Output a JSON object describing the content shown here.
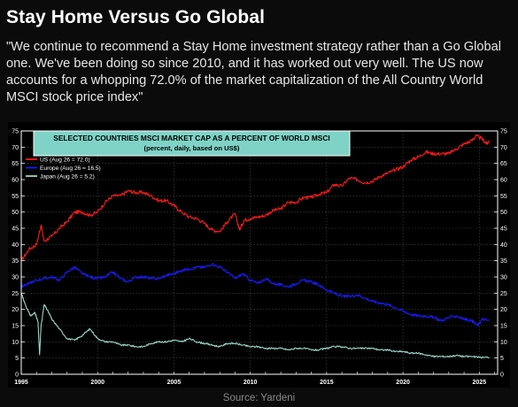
{
  "page": {
    "title": "Stay Home Versus Go Global",
    "quote": "\"We continue to recommend a Stay Home investment strategy rather than a Go Global one. We've been doing so since 2010, and it has worked out very well. The US now accounts for a whopping 72.0% of the market capitalization of the All Country World MSCI stock price index\"",
    "source": "Source: Yardeni"
  },
  "chart_data": {
    "type": "line",
    "title": "SELECTED COUNTRIES MSCI MARKET CAP AS A PERCENT OF WORLD MSCI",
    "subtitle": "(percent, daily, based on US$)",
    "xlim": [
      1995,
      2026.2
    ],
    "ylim": [
      0,
      75
    ],
    "x_ticks": [
      1995,
      2000,
      2005,
      2010,
      2015,
      2020,
      2025
    ],
    "y_ticks": [
      0,
      5,
      10,
      15,
      20,
      25,
      30,
      35,
      40,
      45,
      50,
      55,
      60,
      65,
      70,
      75
    ],
    "grid": true,
    "legend_position": "top-left",
    "colors": {
      "background": "#000000",
      "axis": "#ffffff",
      "title_box": "#7fd3c6"
    },
    "series": [
      {
        "name": "US (Aug 26 = 72.0)",
        "color": "#ff1a1a",
        "points": [
          [
            1995.0,
            35.0
          ],
          [
            1995.5,
            38.5
          ],
          [
            1996.0,
            40.0
          ],
          [
            1996.3,
            46.0
          ],
          [
            1996.5,
            41.0
          ],
          [
            1997.0,
            42.5
          ],
          [
            1997.5,
            45.0
          ],
          [
            1998.0,
            47.0
          ],
          [
            1998.5,
            50.0
          ],
          [
            1999.0,
            50.0
          ],
          [
            1999.5,
            49.0
          ],
          [
            2000.0,
            50.0
          ],
          [
            2000.5,
            53.0
          ],
          [
            2001.0,
            55.0
          ],
          [
            2001.5,
            55.0
          ],
          [
            2002.0,
            56.5
          ],
          [
            2002.5,
            56.0
          ],
          [
            2003.0,
            56.0
          ],
          [
            2003.5,
            55.0
          ],
          [
            2004.0,
            53.5
          ],
          [
            2004.5,
            53.5
          ],
          [
            2005.0,
            52.0
          ],
          [
            2005.5,
            50.0
          ],
          [
            2006.0,
            48.5
          ],
          [
            2006.5,
            48.0
          ],
          [
            2007.0,
            46.5
          ],
          [
            2007.5,
            44.5
          ],
          [
            2008.0,
            44.0
          ],
          [
            2008.5,
            47.0
          ],
          [
            2009.0,
            49.5
          ],
          [
            2009.3,
            44.5
          ],
          [
            2009.6,
            47.5
          ],
          [
            2010.0,
            48.0
          ],
          [
            2010.5,
            48.5
          ],
          [
            2011.0,
            49.0
          ],
          [
            2011.5,
            50.5
          ],
          [
            2012.0,
            51.0
          ],
          [
            2012.5,
            53.0
          ],
          [
            2013.0,
            53.0
          ],
          [
            2013.5,
            54.5
          ],
          [
            2014.0,
            54.5
          ],
          [
            2014.5,
            55.5
          ],
          [
            2015.0,
            56.0
          ],
          [
            2015.5,
            58.5
          ],
          [
            2016.0,
            58.0
          ],
          [
            2016.5,
            60.5
          ],
          [
            2017.0,
            60.0
          ],
          [
            2017.5,
            59.0
          ],
          [
            2018.0,
            59.5
          ],
          [
            2018.5,
            61.0
          ],
          [
            2019.0,
            62.0
          ],
          [
            2019.5,
            63.0
          ],
          [
            2020.0,
            64.0
          ],
          [
            2020.5,
            66.0
          ],
          [
            2021.0,
            67.0
          ],
          [
            2021.5,
            68.5
          ],
          [
            2022.0,
            68.0
          ],
          [
            2022.5,
            68.0
          ],
          [
            2023.0,
            68.0
          ],
          [
            2023.5,
            69.5
          ],
          [
            2024.0,
            71.0
          ],
          [
            2024.5,
            72.0
          ],
          [
            2024.8,
            73.5
          ],
          [
            2025.2,
            72.5
          ],
          [
            2025.5,
            71.0
          ],
          [
            2025.65,
            72.0
          ]
        ]
      },
      {
        "name": "Europe (Aug 26 = 16.5)",
        "color": "#1a1aff",
        "points": [
          [
            1995.0,
            27.0
          ],
          [
            1995.5,
            28.0
          ],
          [
            1996.0,
            29.0
          ],
          [
            1996.5,
            29.5
          ],
          [
            1997.0,
            30.0
          ],
          [
            1997.5,
            29.0
          ],
          [
            1998.0,
            31.5
          ],
          [
            1998.5,
            33.0
          ],
          [
            1999.0,
            31.0
          ],
          [
            1999.5,
            30.0
          ],
          [
            2000.0,
            29.5
          ],
          [
            2000.5,
            30.0
          ],
          [
            2001.0,
            31.5
          ],
          [
            2001.5,
            29.5
          ],
          [
            2002.0,
            28.5
          ],
          [
            2002.5,
            30.0
          ],
          [
            2003.0,
            30.0
          ],
          [
            2003.5,
            29.5
          ],
          [
            2004.0,
            29.5
          ],
          [
            2004.5,
            30.5
          ],
          [
            2005.0,
            31.0
          ],
          [
            2005.5,
            32.0
          ],
          [
            2006.0,
            32.5
          ],
          [
            2006.5,
            33.0
          ],
          [
            2007.0,
            33.0
          ],
          [
            2007.5,
            34.0
          ],
          [
            2008.0,
            33.0
          ],
          [
            2008.5,
            31.5
          ],
          [
            2009.0,
            29.5
          ],
          [
            2009.5,
            31.0
          ],
          [
            2010.0,
            29.0
          ],
          [
            2010.5,
            28.0
          ],
          [
            2011.0,
            29.5
          ],
          [
            2011.5,
            28.0
          ],
          [
            2012.0,
            27.5
          ],
          [
            2012.5,
            27.0
          ],
          [
            2013.0,
            28.0
          ],
          [
            2013.5,
            29.0
          ],
          [
            2014.0,
            28.5
          ],
          [
            2014.5,
            27.5
          ],
          [
            2015.0,
            26.0
          ],
          [
            2015.5,
            25.0
          ],
          [
            2016.0,
            24.0
          ],
          [
            2016.5,
            24.0
          ],
          [
            2017.0,
            24.5
          ],
          [
            2017.5,
            23.5
          ],
          [
            2018.0,
            22.5
          ],
          [
            2018.5,
            22.0
          ],
          [
            2019.0,
            21.5
          ],
          [
            2019.5,
            20.5
          ],
          [
            2020.0,
            19.5
          ],
          [
            2020.5,
            18.5
          ],
          [
            2021.0,
            18.0
          ],
          [
            2021.5,
            18.0
          ],
          [
            2022.0,
            17.5
          ],
          [
            2022.5,
            16.5
          ],
          [
            2023.0,
            17.5
          ],
          [
            2023.5,
            18.0
          ],
          [
            2024.0,
            17.0
          ],
          [
            2024.5,
            16.5
          ],
          [
            2024.9,
            15.0
          ],
          [
            2025.2,
            17.0
          ],
          [
            2025.65,
            16.5
          ]
        ]
      },
      {
        "name": "Japan (Aug 26 = 5.2)",
        "color": "#9ad8c8",
        "points": [
          [
            1995.0,
            25.0
          ],
          [
            1995.3,
            21.0
          ],
          [
            1995.6,
            18.0
          ],
          [
            1995.9,
            19.0
          ],
          [
            1996.1,
            16.0
          ],
          [
            1996.2,
            6.0
          ],
          [
            1996.3,
            15.0
          ],
          [
            1996.5,
            21.5
          ],
          [
            1996.8,
            19.0
          ],
          [
            1997.0,
            17.0
          ],
          [
            1997.5,
            14.0
          ],
          [
            1998.0,
            11.0
          ],
          [
            1998.5,
            10.5
          ],
          [
            1999.0,
            12.0
          ],
          [
            1999.5,
            14.0
          ],
          [
            2000.0,
            11.0
          ],
          [
            2000.5,
            10.0
          ],
          [
            2001.0,
            10.0
          ],
          [
            2001.5,
            9.0
          ],
          [
            2002.0,
            9.0
          ],
          [
            2002.5,
            8.5
          ],
          [
            2003.0,
            8.5
          ],
          [
            2003.5,
            9.5
          ],
          [
            2004.0,
            10.0
          ],
          [
            2004.5,
            10.0
          ],
          [
            2005.0,
            10.5
          ],
          [
            2005.5,
            10.0
          ],
          [
            2006.0,
            11.0
          ],
          [
            2006.5,
            10.0
          ],
          [
            2007.0,
            9.5
          ],
          [
            2007.5,
            9.0
          ],
          [
            2008.0,
            8.5
          ],
          [
            2008.5,
            9.5
          ],
          [
            2009.0,
            9.5
          ],
          [
            2009.5,
            9.0
          ],
          [
            2010.0,
            8.5
          ],
          [
            2010.5,
            8.5
          ],
          [
            2011.0,
            8.0
          ],
          [
            2011.5,
            8.0
          ],
          [
            2012.0,
            8.0
          ],
          [
            2012.5,
            7.5
          ],
          [
            2013.0,
            8.0
          ],
          [
            2013.5,
            8.0
          ],
          [
            2014.0,
            7.5
          ],
          [
            2014.5,
            7.5
          ],
          [
            2015.0,
            8.0
          ],
          [
            2015.5,
            8.5
          ],
          [
            2016.0,
            8.5
          ],
          [
            2016.5,
            8.0
          ],
          [
            2017.0,
            8.0
          ],
          [
            2017.5,
            8.0
          ],
          [
            2018.0,
            8.0
          ],
          [
            2018.5,
            7.5
          ],
          [
            2019.0,
            7.5
          ],
          [
            2019.5,
            7.0
          ],
          [
            2020.0,
            7.0
          ],
          [
            2020.5,
            6.5
          ],
          [
            2021.0,
            6.5
          ],
          [
            2021.5,
            6.0
          ],
          [
            2022.0,
            5.5
          ],
          [
            2022.5,
            5.5
          ],
          [
            2023.0,
            5.5
          ],
          [
            2023.5,
            5.8
          ],
          [
            2024.0,
            5.5
          ],
          [
            2024.5,
            5.5
          ],
          [
            2025.0,
            5.2
          ],
          [
            2025.65,
            5.2
          ]
        ]
      }
    ]
  }
}
